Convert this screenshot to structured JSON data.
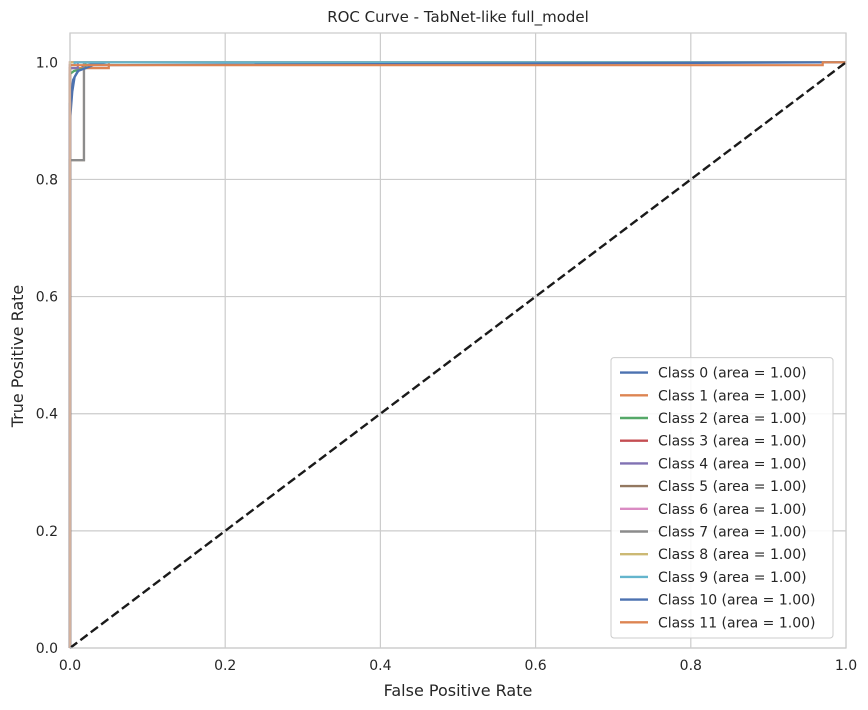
{
  "chart_data": {
    "type": "line",
    "title": "ROC Curve - TabNet-like full_model",
    "xlabel": "False Positive Rate",
    "ylabel": "True Positive Rate",
    "xlim": [
      0.0,
      1.0
    ],
    "ylim": [
      0.0,
      1.05
    ],
    "xticks": [
      "0.0",
      "0.2",
      "0.4",
      "0.6",
      "0.8",
      "1.0"
    ],
    "yticks": [
      "0.0",
      "0.2",
      "0.4",
      "0.6",
      "0.8",
      "1.0"
    ],
    "grid": true,
    "legend_position": "lower-right",
    "diagonal": {
      "x": [
        0,
        1
      ],
      "y": [
        0,
        1
      ],
      "color": "#1a1a1a",
      "style": "dashed"
    },
    "series": [
      {
        "name": "Class 0 (area = 1.00)",
        "color": "#4c72b0",
        "x": [
          0,
          0,
          0.003,
          0.006,
          0.012,
          0.02,
          0.05,
          1.0
        ],
        "y": [
          0,
          0.9,
          0.95,
          0.975,
          0.988,
          0.995,
          1.0,
          1.0
        ]
      },
      {
        "name": "Class 1 (area = 1.00)",
        "color": "#dd8452",
        "x": [
          0,
          0,
          0.005,
          0.05,
          0.05,
          1.0
        ],
        "y": [
          0,
          0.99,
          0.99,
          0.99,
          1.0,
          1.0
        ]
      },
      {
        "name": "Class 2 (area = 1.00)",
        "color": "#55a868",
        "x": [
          0,
          0,
          0.005,
          0.02,
          0.02,
          1.0
        ],
        "y": [
          0,
          0.98,
          0.985,
          0.99,
          1.0,
          1.0
        ]
      },
      {
        "name": "Class 3 (area = 1.00)",
        "color": "#c44e52",
        "x": [
          0,
          0,
          1.0
        ],
        "y": [
          0,
          1.0,
          1.0
        ]
      },
      {
        "name": "Class 4 (area = 1.00)",
        "color": "#8172b3",
        "x": [
          0,
          0,
          0.01,
          0.01,
          1.0
        ],
        "y": [
          0,
          0.99,
          0.99,
          1.0,
          1.0
        ]
      },
      {
        "name": "Class 5 (area = 1.00)",
        "color": "#937860",
        "x": [
          0,
          0,
          0.018,
          0.018,
          1.0
        ],
        "y": [
          0,
          0.833,
          0.833,
          1.0,
          1.0
        ]
      },
      {
        "name": "Class 6 (area = 1.00)",
        "color": "#da8bc3",
        "x": [
          0,
          0,
          1.0
        ],
        "y": [
          0,
          1.0,
          1.0
        ]
      },
      {
        "name": "Class 7 (area = 1.00)",
        "color": "#8c8c8c",
        "x": [
          0,
          0,
          0.018,
          0.018,
          1.0
        ],
        "y": [
          0,
          0.833,
          0.833,
          1.0,
          1.0
        ]
      },
      {
        "name": "Class 8 (area = 1.00)",
        "color": "#ccb974",
        "x": [
          0,
          0,
          1.0
        ],
        "y": [
          0,
          1.0,
          1.0
        ]
      },
      {
        "name": "Class 9 (area = 1.00)",
        "color": "#64b5cd",
        "x": [
          0,
          0,
          0.006,
          0.006,
          1.0
        ],
        "y": [
          0,
          0.995,
          0.995,
          1.0,
          1.0
        ]
      },
      {
        "name": "Class 10 (area = 1.00)",
        "color": "#4c72b0",
        "x": [
          0,
          0,
          0.004,
          0.01,
          0.03,
          1.0
        ],
        "y": [
          0,
          0.93,
          0.97,
          0.985,
          0.995,
          1.0
        ]
      },
      {
        "name": "Class 11 (area = 1.00)",
        "color": "#dd8452",
        "x": [
          0,
          0,
          0.97,
          0.97,
          1.0
        ],
        "y": [
          0,
          0.995,
          0.995,
          1.0,
          1.0
        ]
      }
    ]
  }
}
